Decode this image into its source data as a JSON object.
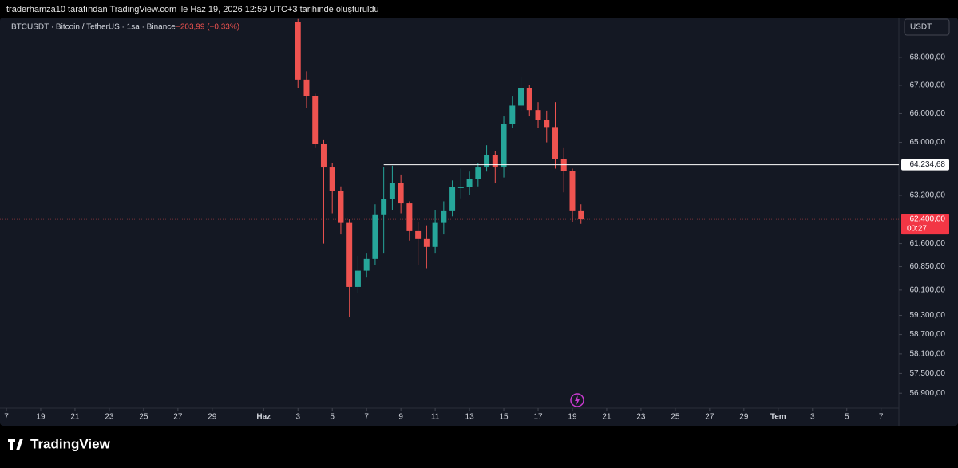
{
  "header": {
    "text": "traderhamza10 tarafından TradingView.com ile Haz 19, 2026 12:59 UTC+3 tarihinde oluşturuldu"
  },
  "chart_data": {
    "type": "candlestick",
    "title": "BTCUSDT · Bitcoin / TetherUS · 1sa · Binance",
    "change": "−203,99 (−0,33%)",
    "currency": "USDT",
    "x": [
      34,
      34.5,
      35,
      35.5,
      36,
      36.5,
      37,
      37.5,
      38,
      38.5,
      39,
      39.5,
      40,
      40.5,
      41,
      41.5,
      42,
      42.5,
      43,
      43.5,
      44,
      44.5,
      45,
      45.5,
      46,
      46.5,
      47,
      47.5,
      48,
      48.5,
      49,
      49.5,
      50,
      50.5
    ],
    "open": [
      69300,
      67200,
      66630,
      64960,
      64140,
      63340,
      62280,
      60200,
      60720,
      61100,
      62540,
      63070,
      63610,
      62930,
      62010,
      61750,
      61490,
      62280,
      62670,
      63470,
      63470,
      63740,
      64140,
      64550,
      64140,
      65650,
      66280,
      66910,
      66120,
      65790,
      65530,
      64420,
      64010,
      62670
    ],
    "high": [
      69400,
      67500,
      66700,
      65100,
      64300,
      63500,
      62400,
      61200,
      61300,
      62900,
      64150,
      64200,
      63900,
      63000,
      62300,
      62200,
      62700,
      63000,
      63700,
      64100,
      64000,
      64300,
      64900,
      64700,
      65900,
      66600,
      67300,
      67000,
      66400,
      66100,
      66400,
      64800,
      64100,
      62900
    ],
    "low": [
      66900,
      66200,
      64800,
      61600,
      62600,
      61900,
      59250,
      60000,
      60500,
      60900,
      61300,
      62700,
      62600,
      61700,
      60900,
      60800,
      61300,
      61900,
      62500,
      63100,
      63200,
      63500,
      64000,
      63600,
      63800,
      65500,
      66100,
      65900,
      65500,
      65000,
      64100,
      63300,
      62300,
      62250
    ],
    "close": [
      67200,
      66630,
      64960,
      64140,
      63340,
      62280,
      60200,
      60720,
      61100,
      62540,
      63070,
      63610,
      62930,
      62010,
      61750,
      61490,
      62280,
      62670,
      63470,
      63470,
      63740,
      64140,
      64550,
      64140,
      65650,
      66280,
      66910,
      66120,
      65790,
      65530,
      64420,
      64010,
      62670,
      62400
    ],
    "up_color": "#26a69a",
    "down_color": "#ef5350",
    "log_scale": true,
    "xlim": [
      17,
      69.41
    ],
    "ylim": [
      56450,
      69450
    ],
    "yticks": [
      {
        "value": 68000,
        "label": "68.000,00"
      },
      {
        "value": 67000,
        "label": "67.000,00"
      },
      {
        "value": 66000,
        "label": "66.000,00"
      },
      {
        "value": 65000,
        "label": "65.000,00"
      },
      {
        "value": 63200,
        "label": "63.200,00"
      },
      {
        "value": 61600,
        "label": "61.600,00"
      },
      {
        "value": 60850,
        "label": "60.850,00"
      },
      {
        "value": 60100,
        "label": "60.100,00"
      },
      {
        "value": 59300,
        "label": "59.300,00"
      },
      {
        "value": 58700,
        "label": "58.700,00"
      },
      {
        "value": 58100,
        "label": "58.100,00"
      },
      {
        "value": 57500,
        "label": "57.500,00"
      },
      {
        "value": 56900,
        "label": "56.900,00"
      }
    ],
    "xticks": [
      {
        "value": 17,
        "label": "7"
      },
      {
        "value": 19,
        "label": "19"
      },
      {
        "value": 21,
        "label": "21"
      },
      {
        "value": 23,
        "label": "23"
      },
      {
        "value": 25,
        "label": "25"
      },
      {
        "value": 27,
        "label": "27"
      },
      {
        "value": 29,
        "label": "29"
      },
      {
        "value": 32,
        "label": "Haz"
      },
      {
        "value": 34,
        "label": "3"
      },
      {
        "value": 36,
        "label": "5"
      },
      {
        "value": 38,
        "label": "7"
      },
      {
        "value": 40,
        "label": "9"
      },
      {
        "value": 42,
        "label": "11"
      },
      {
        "value": 44,
        "label": "13"
      },
      {
        "value": 46,
        "label": "15"
      },
      {
        "value": 48,
        "label": "17"
      },
      {
        "value": 50,
        "label": "19"
      },
      {
        "value": 52,
        "label": "21"
      },
      {
        "value": 54,
        "label": "23"
      },
      {
        "value": 56,
        "label": "25"
      },
      {
        "value": 58,
        "label": "27"
      },
      {
        "value": 60,
        "label": "29"
      },
      {
        "value": 62,
        "label": "Tem"
      },
      {
        "value": 64,
        "label": "3"
      },
      {
        "value": 66,
        "label": "5"
      },
      {
        "value": 68,
        "label": "7"
      }
    ],
    "price_line": {
      "value": 64234.68,
      "label": "64.234,68",
      "start_x": 39
    },
    "last_price": {
      "value": 62400,
      "label": "62.400,00",
      "countdown": "00:27"
    }
  },
  "footer": {
    "brand": "TradingView"
  }
}
